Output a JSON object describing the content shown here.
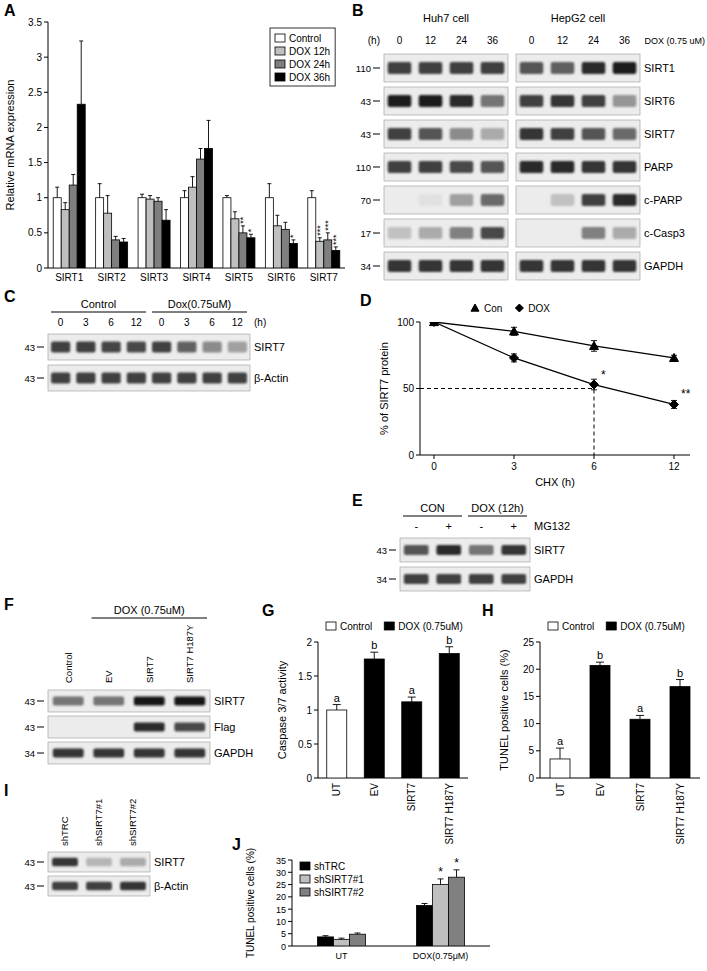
{
  "chart_data": [
    {
      "type": "bar",
      "title": "A",
      "y_label": "Relative mRNA expression",
      "categories": [
        "SIRT1",
        "SIRT2",
        "SIRT3",
        "SIRT4",
        "SIRT5",
        "SIRT6",
        "SIRT7"
      ],
      "ylim": [
        0,
        3.5
      ],
      "yticks": [
        0,
        0.5,
        1,
        1.5,
        2,
        2.5,
        3,
        3.5
      ],
      "legend": "top-right",
      "series": [
        {
          "name": "Control",
          "color": "#ffffff",
          "values": [
            1.0,
            1.0,
            1.0,
            1.0,
            1.0,
            1.0,
            1.0
          ],
          "errors": [
            0.15,
            0.2,
            0.05,
            0.1,
            0.03,
            0.2,
            0.1
          ],
          "annotations": [
            null,
            null,
            null,
            null,
            null,
            null,
            null
          ]
        },
        {
          "name": "DOX 12h",
          "color": "#bfbfbf",
          "values": [
            0.83,
            0.78,
            0.98,
            1.15,
            0.7,
            0.6,
            0.38
          ],
          "errors": [
            0.1,
            0.25,
            0.05,
            0.15,
            0.1,
            0.15,
            0.05
          ],
          "annotations": [
            null,
            null,
            null,
            null,
            null,
            null,
            "***"
          ]
        },
        {
          "name": "DOX 24h",
          "color": "#7f7f7f",
          "values": [
            1.18,
            0.4,
            0.95,
            1.55,
            0.5,
            0.55,
            0.4
          ],
          "errors": [
            0.15,
            0.05,
            0.05,
            0.15,
            0.1,
            0.1,
            0.1
          ],
          "annotations": [
            null,
            null,
            null,
            null,
            "**",
            null,
            "***"
          ]
        },
        {
          "name": "DOX 36h",
          "color": "#000000",
          "values": [
            2.33,
            0.37,
            0.68,
            1.7,
            0.43,
            0.35,
            0.25
          ],
          "errors": [
            0.9,
            0.05,
            0.15,
            0.4,
            0.05,
            0.05,
            0.05
          ],
          "annotations": [
            null,
            null,
            null,
            null,
            "*",
            "*",
            "***"
          ]
        }
      ]
    },
    {
      "type": "line",
      "title": "D",
      "y_label": "% of SIRT7 protein",
      "x_label": "CHX (h)",
      "categories": [
        "0",
        "3",
        "6",
        "12"
      ],
      "ylim": [
        0,
        100
      ],
      "yticks": [
        0,
        50,
        100
      ],
      "legend": "top",
      "reference_line": {
        "y": 50,
        "x": "6"
      },
      "series": [
        {
          "name": "Con",
          "color": "#000000",
          "marker": "triangle",
          "values": [
            100,
            93,
            82,
            73
          ],
          "errors": [
            0,
            3,
            4,
            2
          ],
          "annotations": [
            null,
            null,
            null,
            null
          ]
        },
        {
          "name": "DOX",
          "color": "#000000",
          "marker": "diamond",
          "values": [
            100,
            73,
            53,
            38
          ],
          "errors": [
            0,
            3,
            4,
            3
          ],
          "annotations": [
            null,
            null,
            "*",
            "**"
          ]
        }
      ]
    },
    {
      "type": "bar",
      "title": "G",
      "y_label": "Caspase 3/7 activity",
      "categories": [
        "UT",
        "EV",
        "SIRT7",
        "SIRT7 H187Y"
      ],
      "ylim": [
        0,
        2
      ],
      "yticks": [
        0,
        0.5,
        1,
        1.5,
        2
      ],
      "legend": "top",
      "series": [
        {
          "name": "Control",
          "color": "#ffffff",
          "values": [
            1.0,
            null,
            null,
            null
          ],
          "errors": [
            0.08,
            null,
            null,
            null
          ],
          "annotations": [
            "a",
            null,
            null,
            null
          ]
        },
        {
          "name": "DOX (0.75uM)",
          "color": "#000000",
          "values": [
            null,
            1.75,
            1.12,
            1.83
          ],
          "errors": [
            null,
            0.1,
            0.07,
            0.1
          ],
          "annotations": [
            null,
            "b",
            "a",
            "b"
          ]
        }
      ]
    },
    {
      "type": "bar",
      "title": "H",
      "y_label": "TUNEL positive cells (%)",
      "categories": [
        "UT",
        "EV",
        "SIRT7",
        "SIRT7 H187Y"
      ],
      "ylim": [
        0,
        25
      ],
      "yticks": [
        0,
        5,
        10,
        15,
        20,
        25
      ],
      "legend": "top",
      "series": [
        {
          "name": "Control",
          "color": "#ffffff",
          "values": [
            3.5,
            null,
            null,
            null
          ],
          "errors": [
            2.0,
            null,
            null,
            null
          ],
          "annotations": [
            "a",
            null,
            null,
            null
          ]
        },
        {
          "name": "DOX (0.75uM)",
          "color": "#000000",
          "values": [
            null,
            20.7,
            10.8,
            16.8
          ],
          "errors": [
            null,
            0.6,
            0.7,
            1.3
          ],
          "annotations": [
            null,
            "b",
            "a",
            "b"
          ]
        }
      ]
    },
    {
      "type": "bar",
      "title": "J",
      "y_label": "TUNEL positive cells (%)",
      "categories": [
        "UT",
        "DOX(0.75μM)"
      ],
      "ylim": [
        0,
        35
      ],
      "yticks": [
        0,
        5,
        10,
        15,
        20,
        25,
        30,
        35
      ],
      "legend": "top-left",
      "series": [
        {
          "name": "shTRC",
          "color": "#000000",
          "values": [
            3.7,
            16.5
          ],
          "errors": [
            0.5,
            0.8
          ],
          "annotations": [
            null,
            null
          ]
        },
        {
          "name": "shSIRT7#1",
          "color": "#bfbfbf",
          "values": [
            2.7,
            25.0
          ],
          "errors": [
            0.5,
            2.3
          ],
          "annotations": [
            null,
            "*"
          ]
        },
        {
          "name": "shSIRT7#2",
          "color": "#808080",
          "values": [
            4.8,
            28.0
          ],
          "errors": [
            0.5,
            3.0
          ],
          "annotations": [
            null,
            "*"
          ]
        }
      ]
    }
  ],
  "blots": [
    {
      "panel": "B",
      "headers": [
        {
          "text": "Huh7 cell",
          "lanes": [
            0,
            3
          ],
          "line": false
        },
        {
          "text": "HepG2 cell",
          "lanes": [
            4,
            7
          ],
          "line": false
        }
      ],
      "lanes": [
        "0",
        "12",
        "24",
        "36",
        "0",
        "12",
        "24",
        "36"
      ],
      "lane_prefix": "(h)",
      "lane_suffix": "DOX (0.75 uM)",
      "rows": [
        {
          "label": "SIRT1",
          "mw": 110,
          "bands": [
            0.8,
            0.8,
            0.8,
            0.8,
            0.7,
            0.65,
            0.9,
            0.95
          ]
        },
        {
          "label": "SIRT6",
          "mw": 43,
          "bands": [
            0.95,
            0.95,
            0.9,
            0.55,
            0.8,
            0.85,
            0.8,
            0.4
          ]
        },
        {
          "label": "SIRT7",
          "mw": 43,
          "bands": [
            0.8,
            0.7,
            0.45,
            0.3,
            0.85,
            0.8,
            0.7,
            0.6
          ]
        },
        {
          "label": "PARP",
          "mw": 110,
          "bands": [
            0.8,
            0.8,
            0.75,
            0.7,
            0.9,
            0.9,
            0.85,
            0.85
          ]
        },
        {
          "label": "c-PARP",
          "mw": 70,
          "bands": [
            0,
            0.05,
            0.35,
            0.6,
            0,
            0.2,
            0.8,
            0.9
          ]
        },
        {
          "label": "c-Casp3",
          "mw": 17,
          "bands": [
            0.2,
            0.3,
            0.5,
            0.75,
            0,
            0,
            0.5,
            0.3
          ]
        },
        {
          "label": "GAPDH",
          "mw": 34,
          "bands": [
            0.85,
            0.85,
            0.85,
            0.85,
            0.85,
            0.85,
            0.85,
            0.85
          ]
        }
      ]
    },
    {
      "panel": "C",
      "headers": [
        {
          "text": "Control",
          "lanes": [
            0,
            3
          ],
          "line": true
        },
        {
          "text": "Dox(0.75uM)",
          "lanes": [
            4,
            7
          ],
          "line": true
        }
      ],
      "lanes": [
        "0",
        "3",
        "6",
        "12",
        "0",
        "3",
        "6",
        "12"
      ],
      "lane_suffix": "(h)",
      "rows": [
        {
          "label": "SIRT7",
          "mw": 43,
          "bands": [
            0.8,
            0.8,
            0.78,
            0.75,
            0.8,
            0.65,
            0.45,
            0.35
          ]
        },
        {
          "label": "β-Actin",
          "mw": 43,
          "bands": [
            0.8,
            0.8,
            0.8,
            0.8,
            0.8,
            0.8,
            0.8,
            0.8
          ]
        }
      ]
    },
    {
      "panel": "E",
      "headers": [
        {
          "text": "CON",
          "lanes": [
            0,
            1
          ],
          "line": true
        },
        {
          "text": "DOX (12h)",
          "lanes": [
            2,
            3
          ],
          "line": true
        }
      ],
      "lanes": [
        "-",
        "+",
        "-",
        "+"
      ],
      "lane_suffix": "MG132",
      "rows": [
        {
          "label": "SIRT7",
          "mw": 43,
          "bands": [
            0.7,
            0.9,
            0.55,
            0.85
          ]
        },
        {
          "label": "GAPDH",
          "mw": 34,
          "bands": [
            0.8,
            0.8,
            0.8,
            0.8
          ]
        }
      ]
    },
    {
      "panel": "F",
      "headers": [
        {
          "text": "DOX (0.75uM)",
          "lanes": [
            1,
            3
          ],
          "line": true
        }
      ],
      "lanes": [
        "Control",
        "EV",
        "SIRT7",
        "SIRT7 H187Y"
      ],
      "lane_label_style": "vertical",
      "rows": [
        {
          "label": "SIRT7",
          "mw": 43,
          "bands": [
            0.55,
            0.55,
            1.0,
            1.0
          ]
        },
        {
          "label": "Flag",
          "mw": 43,
          "bands": [
            0,
            0,
            0.9,
            0.75
          ]
        },
        {
          "label": "GAPDH",
          "mw": 34,
          "bands": [
            0.85,
            0.85,
            0.85,
            0.85
          ]
        }
      ]
    },
    {
      "panel": "I",
      "headers": [],
      "lanes": [
        "shTRC",
        "shSIRT7#1",
        "shSIRT7#2"
      ],
      "lane_label_style": "vertical",
      "rows": [
        {
          "label": "SIRT7",
          "mw": 43,
          "bands": [
            0.85,
            0.25,
            0.3
          ]
        },
        {
          "label": "β-Actin",
          "mw": 43,
          "bands": [
            0.8,
            0.8,
            0.85
          ]
        }
      ]
    }
  ]
}
